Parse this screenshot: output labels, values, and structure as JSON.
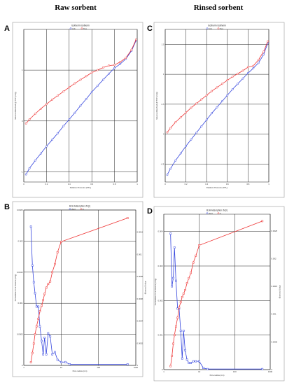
{
  "figure": {
    "col_titles": [
      "Raw sorbent",
      "Rinsed sorbent"
    ],
    "panel_labels": [
      "A",
      "B",
      "C",
      "D"
    ]
  },
  "chart_data": [
    {
      "panel": "A",
      "type": "line",
      "title": "Isotherm Isotherm",
      "xlabel": "Relative Pressure (P/P₀)",
      "ylabel": "Volume Adsorbed @ STP (cc/g)",
      "xlim": [
        0,
        1
      ],
      "ylim": [
        -1.2,
        1.8
      ],
      "xticks": [
        "0",
        "0.2",
        "0.4",
        "0.6",
        "0.8",
        "1"
      ],
      "yticks": [
        "-1",
        "0",
        "1"
      ],
      "legend_position": "top",
      "series": [
        {
          "name": "Ads",
          "color": "#3344dd",
          "x": [
            0.02,
            0.05,
            0.1,
            0.15,
            0.2,
            0.25,
            0.3,
            0.35,
            0.4,
            0.45,
            0.5,
            0.55,
            0.6,
            0.65,
            0.7,
            0.75,
            0.8,
            0.85,
            0.9,
            0.95,
            0.99
          ],
          "y": [
            -1.05,
            -0.93,
            -0.78,
            -0.64,
            -0.5,
            -0.37,
            -0.24,
            -0.1,
            0.03,
            0.16,
            0.3,
            0.43,
            0.57,
            0.69,
            0.81,
            0.93,
            1.04,
            1.12,
            1.22,
            1.38,
            1.58
          ]
        },
        {
          "name": "Des",
          "color": "#ee3333",
          "x": [
            0.02,
            0.05,
            0.1,
            0.15,
            0.2,
            0.25,
            0.3,
            0.35,
            0.4,
            0.45,
            0.5,
            0.55,
            0.6,
            0.65,
            0.7,
            0.75,
            0.8,
            0.85,
            0.9,
            0.95,
            0.99
          ],
          "y": [
            -0.05,
            0.03,
            0.14,
            0.24,
            0.33,
            0.42,
            0.5,
            0.58,
            0.66,
            0.74,
            0.81,
            0.88,
            0.95,
            1.0,
            1.05,
            1.09,
            1.1,
            1.16,
            1.24,
            1.4,
            1.6
          ]
        }
      ]
    },
    {
      "panel": "B",
      "type": "line",
      "title": "BJH Adsorption dV(r)",
      "xlabel": "Pore radius (nm)",
      "ylabel": "Cumulative Pore Volume (cc/g)",
      "ylabel_right": "dV(r) (cc/nm/g)",
      "xscale": "log",
      "xlim": [
        1,
        1000
      ],
      "xticks": [
        "1",
        "10",
        "100",
        "1000"
      ],
      "ylim": [
        0,
        0.0025
      ],
      "yticks": [
        "0",
        "0.0005",
        "0.001",
        "0.0015",
        "0.002",
        "0.0025"
      ],
      "ylim_right": [
        0,
        0.0014
      ],
      "yticks_right": [
        "0",
        "0.0002",
        "0.0004",
        "0.0006",
        "0.0008",
        "0.001",
        "0.0012"
      ],
      "legend_position": "top",
      "series": [
        {
          "name": "dV(r)",
          "axis": "right",
          "color": "#3344dd",
          "x": [
            1.55,
            1.7,
            1.85,
            2.0,
            2.2,
            2.45,
            2.7,
            3.0,
            3.3,
            3.6,
            4.0,
            4.5,
            5.1,
            5.8,
            6.8,
            8.0,
            10.0,
            13.0,
            17.0,
            600.0
          ],
          "y": [
            0.00125,
            0.0009,
            0.00075,
            0.00065,
            0.00053,
            0.00053,
            0.00035,
            0.00022,
            0.0001,
            0.00025,
            0.0001,
            0.00029,
            0.00026,
            0.0001,
            0.00012,
            5e-05,
            3e-05,
            3e-05,
            1e-05,
            1e-05
          ]
        },
        {
          "name": "V",
          "axis": "left",
          "color": "#ee3333",
          "x": [
            1.55,
            1.7,
            1.85,
            2.0,
            2.2,
            2.45,
            2.7,
            3.0,
            3.3,
            3.6,
            4.0,
            4.5,
            5.1,
            5.8,
            6.8,
            8.0,
            10.0,
            600.0
          ],
          "y": [
            5e-05,
            0.0002,
            0.00035,
            0.0005,
            0.00063,
            0.00075,
            0.00087,
            0.00096,
            0.00105,
            0.00115,
            0.00125,
            0.00131,
            0.00135,
            0.0015,
            0.00163,
            0.00182,
            0.00199,
            0.00237
          ]
        }
      ]
    },
    {
      "panel": "C",
      "type": "line",
      "title": "Isotherm Isotherm",
      "xlabel": "Relative Pressure (P/P₀)",
      "ylabel": "Volume Adsorbed @ STP (cc/g)",
      "xlim": [
        0,
        1
      ],
      "ylim": [
        -0.8,
        1.75
      ],
      "xticks": [
        "0",
        "0.2",
        "0.4",
        "0.6",
        "0.8",
        "1"
      ],
      "yticks": [
        "-0.5",
        "0",
        "0.5",
        "1",
        "1.5"
      ],
      "legend_position": "top",
      "series": [
        {
          "name": "Ads",
          "color": "#3344dd",
          "x": [
            0.02,
            0.05,
            0.1,
            0.15,
            0.2,
            0.25,
            0.3,
            0.35,
            0.4,
            0.45,
            0.5,
            0.55,
            0.6,
            0.65,
            0.7,
            0.75,
            0.8,
            0.85,
            0.9,
            0.95,
            0.99
          ],
          "y": [
            -0.68,
            -0.58,
            -0.44,
            -0.32,
            -0.2,
            -0.09,
            0.02,
            0.13,
            0.24,
            0.35,
            0.45,
            0.55,
            0.65,
            0.75,
            0.84,
            0.93,
            1.02,
            1.1,
            1.19,
            1.33,
            1.52
          ]
        },
        {
          "name": "Des",
          "color": "#ee3333",
          "x": [
            0.02,
            0.05,
            0.1,
            0.15,
            0.2,
            0.25,
            0.3,
            0.35,
            0.4,
            0.45,
            0.5,
            0.55,
            0.6,
            0.65,
            0.7,
            0.75,
            0.8,
            0.85,
            0.9,
            0.95,
            0.99
          ],
          "y": [
            0.03,
            0.1,
            0.2,
            0.28,
            0.36,
            0.44,
            0.51,
            0.58,
            0.65,
            0.72,
            0.78,
            0.84,
            0.9,
            0.96,
            1.01,
            1.06,
            1.12,
            1.14,
            1.24,
            1.38,
            1.55
          ]
        }
      ]
    },
    {
      "panel": "D",
      "type": "line",
      "title": "BJH Adsorption dV(r)",
      "xlabel": "Pore radius (nm)",
      "ylabel": "Cumulative Pore Volume (cc/g)",
      "ylabel_right": "dV(r) (cc/nm/g)",
      "xscale": "log",
      "xlim": [
        1,
        1000
      ],
      "xticks": [
        "1",
        "10",
        "100",
        "1000"
      ],
      "ylim": [
        0,
        0.0045
      ],
      "yticks": [
        "0",
        "0.001",
        "0.002",
        "0.003",
        "0.004"
      ],
      "ylim_right": [
        0,
        0.0028
      ],
      "yticks_right": [
        "0",
        "0.0005",
        "0.001",
        "0.0015",
        "0.002",
        "0.0025"
      ],
      "legend_position": "top",
      "series": [
        {
          "name": "dV(r)",
          "axis": "right",
          "color": "#3344dd",
          "x": [
            1.55,
            1.7,
            1.85,
            2.0,
            2.2,
            2.45,
            2.7,
            3.0,
            3.3,
            3.6,
            4.0,
            4.5,
            5.1,
            5.8,
            6.8,
            8.0,
            10.0,
            13.0,
            17.0,
            600.0
          ],
          "y": [
            0.00245,
            0.0015,
            0.00165,
            0.0022,
            0.0016,
            0.0011,
            0.0011,
            0.0007,
            0.0002,
            0.0007,
            0.00035,
            0.00018,
            0.00012,
            0.00012,
            0.00015,
            0.00015,
            0.00015,
            3e-05,
            1e-05,
            1e-05
          ]
        },
        {
          "name": "V",
          "axis": "left",
          "color": "#ee3333",
          "x": [
            1.55,
            1.7,
            1.85,
            2.0,
            2.2,
            2.45,
            2.7,
            3.0,
            3.3,
            3.6,
            4.0,
            4.5,
            5.1,
            5.8,
            6.8,
            8.0,
            10.0,
            600.0
          ],
          "y": [
            0.0001,
            0.0004,
            0.00075,
            0.001,
            0.00125,
            0.0015,
            0.0018,
            0.00195,
            0.0021,
            0.0022,
            0.0023,
            0.0025,
            0.00265,
            0.0028,
            0.0031,
            0.0033,
            0.0036,
            0.0043
          ]
        }
      ]
    }
  ]
}
